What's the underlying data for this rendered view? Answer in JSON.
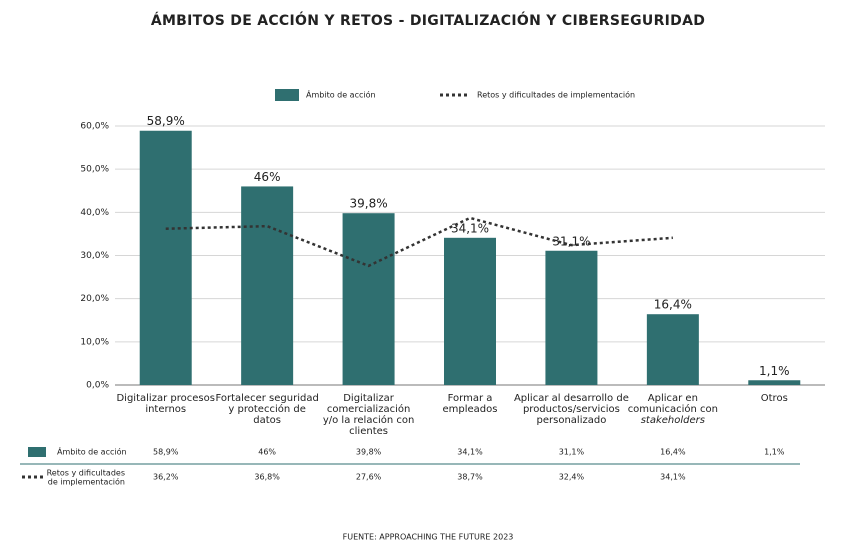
{
  "chart_data": {
    "type": "bar",
    "title": "ÁMBITOS DE ACCIÓN Y RETOS - DIGITALIZACIÓN Y CIBERSEGURIDAD",
    "source": "FUENTE: APPROACHING THE FUTURE 2023",
    "categories": [
      [
        "Digitalizar procesos",
        "internos"
      ],
      [
        "Fortalecer seguridad",
        "y protección de",
        "datos"
      ],
      [
        "Digitalizar",
        "comercialización",
        "y/o la relación con",
        "clientes"
      ],
      [
        "Formar a",
        "empleados"
      ],
      [
        "Aplicar al desarrollo de",
        "productos/servicios",
        "personalizado"
      ],
      [
        "Aplicar en",
        "comunicación con",
        "stakeholders"
      ],
      [
        "Otros"
      ]
    ],
    "series": [
      {
        "name": "Ámbito de acción",
        "type": "bar",
        "color": "#2f6f70",
        "values": [
          58.9,
          46,
          39.8,
          34.1,
          31.1,
          16.4,
          1.1
        ],
        "value_labels": [
          "58,9%",
          "46%",
          "39,8%",
          "34,1%",
          "31,1%",
          "16,4%",
          "1,1%"
        ]
      },
      {
        "name": "Retos y dificultades de implementación",
        "type": "line",
        "color": "#333333",
        "values": [
          36.2,
          36.8,
          27.6,
          38.7,
          32.4,
          34.1,
          null
        ],
        "value_labels": [
          "36,2%",
          "36,8%",
          "27,6%",
          "38,7%",
          "32,4%",
          "34,1%",
          null
        ]
      }
    ],
    "ylim": [
      0,
      60
    ],
    "yticks": [
      {
        "value": 0,
        "label": "0,0%"
      },
      {
        "value": 10,
        "label": "10,0%"
      },
      {
        "value": 20,
        "label": "20,0%"
      },
      {
        "value": 30,
        "label": "30,0%"
      },
      {
        "value": 40,
        "label": "40,0%"
      },
      {
        "value": 50,
        "label": "50,0%"
      },
      {
        "value": 60,
        "label": "60,0%"
      }
    ],
    "grid": true,
    "legend": "top"
  }
}
